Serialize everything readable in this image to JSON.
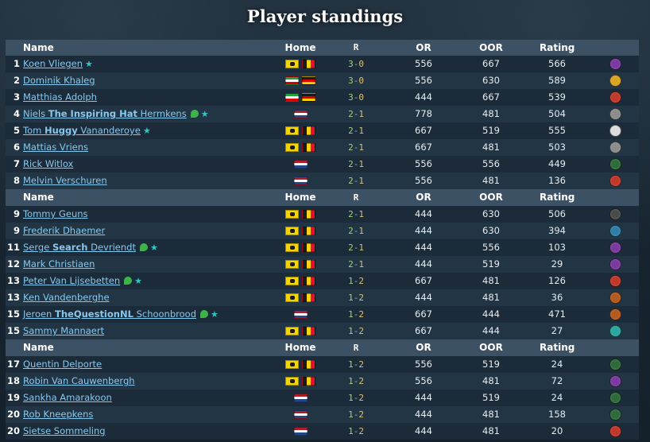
{
  "title": "Player standings",
  "columns": {
    "name": "Name",
    "home": "Home",
    "r": "R",
    "or": "OR",
    "oor": "OOR",
    "rating": "Rating"
  },
  "groups": [
    {
      "rows": [
        {
          "rank": "1",
          "name_parts": [
            "Koen Vliegen"
          ],
          "badges": [
            "star"
          ],
          "flags": [
            "fl",
            "be"
          ],
          "r": "3-0",
          "or": "556",
          "oor": "667",
          "rating": "566",
          "faction": {
            "icon": "faction-icon",
            "color": "#7b3aa0"
          }
        },
        {
          "rank": "2",
          "name_parts": [
            "Dominik Khaleg"
          ],
          "badges": [],
          "flags": [
            "ir",
            "de"
          ],
          "r": "3-0",
          "or": "556",
          "oor": "630",
          "rating": "589",
          "faction": {
            "icon": "faction-icon",
            "color": "#d9a520"
          }
        },
        {
          "rank": "3",
          "name_parts": [
            "Matthias Adolph"
          ],
          "badges": [],
          "flags": [
            "ir",
            "de"
          ],
          "r": "3-0",
          "or": "444",
          "oor": "667",
          "rating": "539",
          "faction": {
            "icon": "faction-icon",
            "color": "#c0392b"
          }
        },
        {
          "rank": "4",
          "name_parts": [
            "Niels ",
            "The Inspiring Hat",
            " Hermkens"
          ],
          "badges": [
            "leaf",
            "star"
          ],
          "flags": [
            "nl"
          ],
          "r": "2-1",
          "or": "778",
          "oor": "481",
          "rating": "504",
          "faction": {
            "icon": "faction-icon",
            "color": "#8d8d8d"
          }
        },
        {
          "rank": "5",
          "name_parts": [
            "Tom ",
            "Huggy",
            " Vananderoye"
          ],
          "badges": [
            "star"
          ],
          "flags": [
            "fl",
            "be"
          ],
          "r": "2-1",
          "or": "667",
          "oor": "519",
          "rating": "555",
          "faction": {
            "icon": "faction-icon",
            "color": "#dcdcdc"
          }
        },
        {
          "rank": "6",
          "name_parts": [
            "Mattias Vriens"
          ],
          "badges": [],
          "flags": [
            "fl",
            "be"
          ],
          "r": "2-1",
          "or": "667",
          "oor": "481",
          "rating": "503",
          "faction": {
            "icon": "faction-icon",
            "color": "#8d8d8d"
          }
        },
        {
          "rank": "7",
          "name_parts": [
            "Rick Witlox"
          ],
          "badges": [],
          "flags": [
            "nl"
          ],
          "r": "2-1",
          "or": "556",
          "oor": "556",
          "rating": "449",
          "faction": {
            "icon": "faction-icon",
            "color": "#2e6b3a"
          }
        },
        {
          "rank": "8",
          "name_parts": [
            "Melvin Verschuren"
          ],
          "badges": [],
          "flags": [
            "nl"
          ],
          "r": "2-1",
          "or": "556",
          "oor": "481",
          "rating": "136",
          "faction": {
            "icon": "faction-icon",
            "color": "#c0392b"
          }
        }
      ]
    },
    {
      "rows": [
        {
          "rank": "9",
          "name_parts": [
            "Tommy Geuns"
          ],
          "badges": [],
          "flags": [
            "fl",
            "be"
          ],
          "r": "2-1",
          "or": "444",
          "oor": "630",
          "rating": "506",
          "faction": {
            "icon": "faction-icon",
            "color": "#4a4a4a"
          }
        },
        {
          "rank": "9",
          "name_parts": [
            "Frederik Dhaemer"
          ],
          "badges": [],
          "flags": [
            "fl",
            "be"
          ],
          "r": "2-1",
          "or": "444",
          "oor": "630",
          "rating": "394",
          "faction": {
            "icon": "faction-icon",
            "color": "#2e7fa8"
          }
        },
        {
          "rank": "11",
          "name_parts": [
            "Serge ",
            "Search",
            " Devriendt"
          ],
          "badges": [
            "leaf",
            "star"
          ],
          "flags": [
            "fl",
            "be"
          ],
          "r": "2-1",
          "or": "444",
          "oor": "556",
          "rating": "103",
          "faction": {
            "icon": "faction-icon",
            "color": "#7b3aa0"
          }
        },
        {
          "rank": "12",
          "name_parts": [
            "Mark Christiaen"
          ],
          "badges": [],
          "flags": [
            "fl",
            "be"
          ],
          "r": "2-1",
          "or": "444",
          "oor": "519",
          "rating": "29",
          "faction": {
            "icon": "faction-icon",
            "color": "#7b3aa0"
          }
        },
        {
          "rank": "13",
          "name_parts": [
            "Peter Van Lijsebetten"
          ],
          "badges": [
            "leaf",
            "star"
          ],
          "flags": [
            "fl",
            "be"
          ],
          "r": "1-2",
          "or": "667",
          "oor": "481",
          "rating": "126",
          "faction": {
            "icon": "faction-icon",
            "color": "#c0392b"
          }
        },
        {
          "rank": "13",
          "name_parts": [
            "Ken Vandenberghe"
          ],
          "badges": [],
          "flags": [
            "fl",
            "be"
          ],
          "r": "1-2",
          "or": "444",
          "oor": "481",
          "rating": "36",
          "faction": {
            "icon": "faction-icon",
            "color": "#b35a1f"
          }
        },
        {
          "rank": "15",
          "name_parts": [
            "Jeroen ",
            "TheQuestionNL",
            " Schoonbrood"
          ],
          "badges": [
            "leaf",
            "star"
          ],
          "flags": [
            "nl"
          ],
          "r": "1-2",
          "or": "667",
          "oor": "444",
          "rating": "471",
          "faction": {
            "icon": "faction-icon",
            "color": "#b35a1f"
          }
        },
        {
          "rank": "15",
          "name_parts": [
            "Sammy Mannaert"
          ],
          "badges": [],
          "flags": [
            "fl",
            "be"
          ],
          "r": "1-2",
          "or": "667",
          "oor": "444",
          "rating": "27",
          "faction": {
            "icon": "faction-icon",
            "color": "#2aa7a0"
          }
        }
      ]
    },
    {
      "rows": [
        {
          "rank": "17",
          "name_parts": [
            "Quentin Delporte"
          ],
          "badges": [],
          "flags": [
            "fl",
            "be"
          ],
          "r": "1-2",
          "or": "556",
          "oor": "519",
          "rating": "24",
          "faction": {
            "icon": "faction-icon",
            "color": "#2e6b3a"
          }
        },
        {
          "rank": "18",
          "name_parts": [
            "Robin Van Cauwenbergh"
          ],
          "badges": [],
          "flags": [
            "fl",
            "be"
          ],
          "r": "1-2",
          "or": "556",
          "oor": "481",
          "rating": "72",
          "faction": {
            "icon": "faction-icon",
            "color": "#7b3aa0"
          }
        },
        {
          "rank": "19",
          "name_parts": [
            "Sankha Amarakoon"
          ],
          "badges": [],
          "flags": [
            "nl"
          ],
          "r": "1-2",
          "or": "444",
          "oor": "519",
          "rating": "24",
          "faction": {
            "icon": "faction-icon",
            "color": "#2e6b3a"
          }
        },
        {
          "rank": "20",
          "name_parts": [
            "Rob Kneepkens"
          ],
          "badges": [],
          "flags": [
            "nl"
          ],
          "r": "1-2",
          "or": "444",
          "oor": "481",
          "rating": "158",
          "faction": {
            "icon": "faction-icon",
            "color": "#2e6b3a"
          }
        },
        {
          "rank": "20",
          "name_parts": [
            "Sietse Sommeling"
          ],
          "badges": [],
          "flags": [
            "nl"
          ],
          "r": "1-2",
          "or": "444",
          "oor": "481",
          "rating": "20",
          "faction": {
            "icon": "faction-icon",
            "color": "#c0392b"
          }
        }
      ]
    }
  ]
}
